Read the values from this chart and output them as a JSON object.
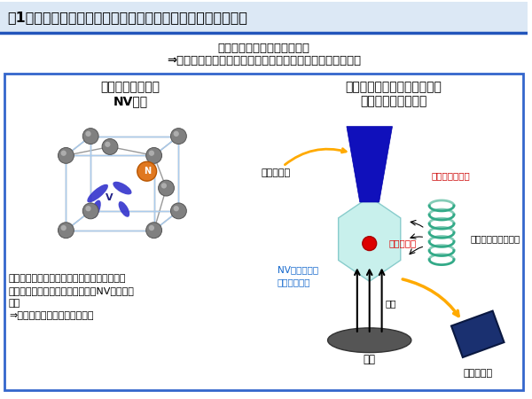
{
  "title": "図1　ダイヤモンド中の電子スピンとそのセンシングへの応用",
  "subtitle_line1": "ダイヤモンド中の電子スピン",
  "subtitle_line2": "⇒量子センサ実現の候補（磁場、電場、温度の高感度検出）",
  "left_title_line1": "ダイヤモンド中の",
  "left_title_line2": "NV中心",
  "right_title_line1": "ダイヤモンド中の電子スピン",
  "right_title_line2": "を用いた量子センサ",
  "left_caption_lines": [
    "炭素のあるべき位置に置き換わった窒素と、",
    "炭素が抜けてできた空孔との対（NV中心）を",
    "生成",
    "⇒電子スピンがトラップされる"
  ],
  "label_laser": "レーザー光",
  "label_electron_spin": "電子スピン",
  "label_microwave": "マイクロ波生成装置",
  "label_afm": "原子間力顕微鏡",
  "label_nv_diamond_line1": "NV中心を含む",
  "label_nv_diamond_line2": "ダイヤモンド",
  "label_magnetic": "磁場",
  "label_target": "標的",
  "label_photodetector": "光子検出器",
  "bg_color": "#ffffff",
  "box_border_color": "#3366cc",
  "title_bg_color": "#dde8f8",
  "title_color": "#000000",
  "afm_color": "#cc0000",
  "nv_label_color": "#1166cc",
  "laser_arrow_color": "#ffaa00",
  "up_arrow_color": "#000000",
  "electron_dot_color": "#dd0000",
  "coil_color": "#33aa88",
  "detector_color": "#1a3070",
  "detector_arrow_color": "#ffaa00"
}
